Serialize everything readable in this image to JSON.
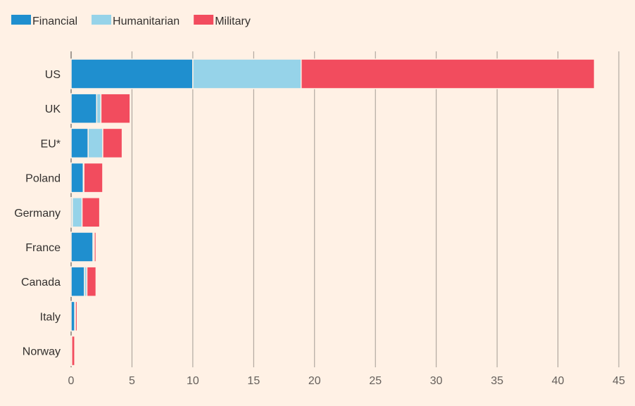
{
  "chart_data": {
    "type": "bar",
    "orientation": "horizontal",
    "stacked": true,
    "categories": [
      "US",
      "UK",
      "EU*",
      "Poland",
      "Germany",
      "France",
      "Canada",
      "Italy",
      "Norway"
    ],
    "series": [
      {
        "name": "Financial",
        "color": "#1f8fcf",
        "values": [
          10.0,
          2.1,
          1.4,
          1.0,
          0.1,
          1.8,
          1.1,
          0.3,
          0.0
        ]
      },
      {
        "name": "Humanitarian",
        "color": "#96d3e9",
        "values": [
          8.9,
          0.35,
          1.2,
          0.05,
          0.8,
          0.1,
          0.2,
          0.05,
          0.05
        ]
      },
      {
        "name": "Military",
        "color": "#f24c5e",
        "values": [
          24.1,
          2.4,
          1.6,
          1.55,
          1.45,
          0.15,
          0.75,
          0.15,
          0.25
        ]
      }
    ],
    "xlim": [
      0,
      45
    ],
    "xticks": [
      0,
      5,
      10,
      15,
      20,
      25,
      30,
      35,
      40,
      45
    ],
    "grid": true,
    "legend": "top-left",
    "title": "",
    "xlabel": "",
    "ylabel": ""
  }
}
